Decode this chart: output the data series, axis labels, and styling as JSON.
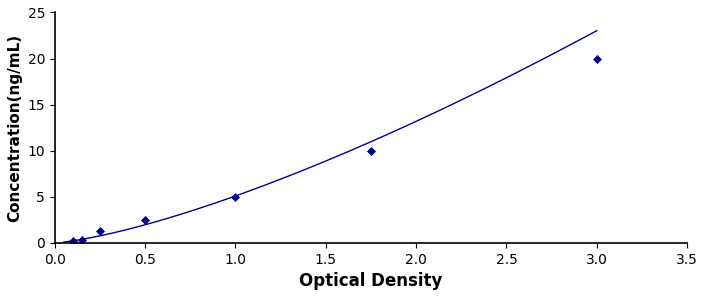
{
  "x_points": [
    0.1,
    0.15,
    0.25,
    0.5,
    1.0,
    1.75,
    3.0
  ],
  "y_points": [
    0.156,
    0.312,
    1.25,
    2.5,
    5.0,
    10.0,
    20.0
  ],
  "xlabel": "Optical Density",
  "ylabel": "Concentration(ng/mL)",
  "xlim": [
    0,
    3.5
  ],
  "ylim": [
    0,
    25
  ],
  "xticks": [
    0,
    0.5,
    1.0,
    1.5,
    2.0,
    2.5,
    3.0,
    3.5
  ],
  "yticks": [
    0,
    5,
    10,
    15,
    20,
    25
  ],
  "line_color": "#00008B",
  "marker_color": "#00008B",
  "bg_color": "#ffffff",
  "figure_bg": "#ffffff",
  "marker": "D",
  "marker_size": 4,
  "line_width": 1.0,
  "xlabel_fontsize": 12,
  "ylabel_fontsize": 11,
  "tick_fontsize": 10
}
